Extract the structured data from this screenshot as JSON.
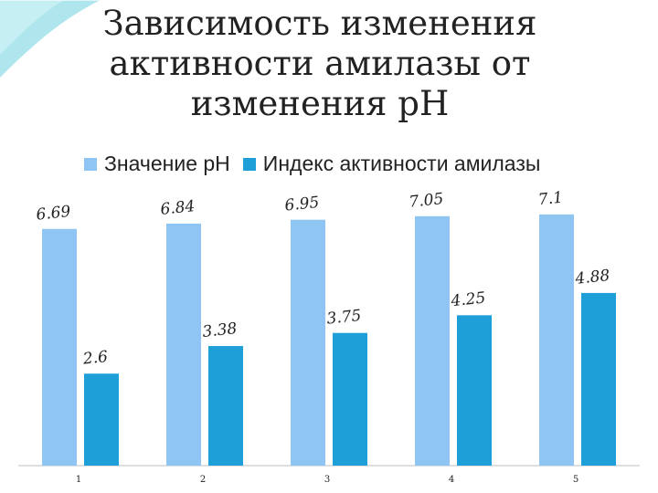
{
  "title_lines": [
    "Зависимость изменения",
    "активности амилазы от",
    "изменения pH"
  ],
  "colors": {
    "series1": "#8ec5f2",
    "series2": "#1e9fd8",
    "accent": "#a6e3ec"
  },
  "chart_data": {
    "type": "bar",
    "categories": [
      "1",
      "2",
      "3",
      "4",
      "5"
    ],
    "series": [
      {
        "name": "Значение pH",
        "values": [
          6.69,
          6.84,
          6.95,
          7.05,
          7.1
        ],
        "labels": [
          "6.69",
          "6.84",
          "6.95",
          "7.05",
          "7.1"
        ]
      },
      {
        "name": "Индекс активности амилазы",
        "values": [
          2.6,
          3.38,
          3.75,
          4.25,
          4.88
        ],
        "labels": [
          "2.6",
          "3.38",
          "3.75",
          "4.25",
          "4.88"
        ]
      }
    ],
    "ylim": [
      0,
      8
    ],
    "legend": "top",
    "grid": false
  }
}
